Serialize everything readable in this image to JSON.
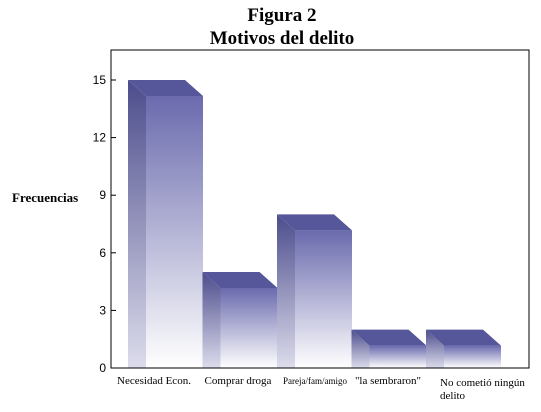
{
  "chart_data": {
    "type": "bar",
    "title": "Figura 2",
    "subtitle": "Motivos del delito",
    "ylabel": "Frecuencias",
    "xlabel": "",
    "categories": [
      "Necesidad Econ.",
      "Comprar droga",
      "Pareja/fam/amigo",
      "\"la sembraron\"",
      "No cometió ningún delito"
    ],
    "values": [
      15,
      5,
      8,
      2,
      2
    ],
    "ylim": [
      0,
      15
    ],
    "yticks": [
      0,
      3,
      6,
      9,
      12,
      15
    ],
    "grid": false,
    "legend": "none",
    "bar_style": "3d",
    "colors": {
      "bar_top": "#6a6aae",
      "bar_bottom": "#ffffff",
      "bar_side": "#4c4c8c",
      "bar_cap": "#56569a"
    }
  }
}
